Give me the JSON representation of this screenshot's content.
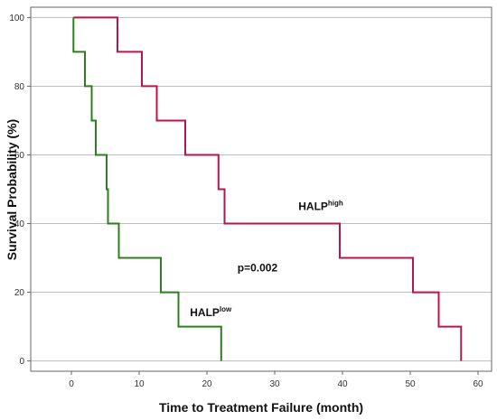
{
  "chart_data": {
    "type": "line",
    "step": true,
    "xlabel": "Time to Treatment Failure (month)",
    "ylabel": "Survival Probability (%)",
    "xlim": [
      -6,
      62
    ],
    "ylim": [
      -3,
      103
    ],
    "xticks": [
      0,
      10,
      20,
      30,
      40,
      50,
      60
    ],
    "yticks": [
      0,
      20,
      40,
      60,
      80,
      100
    ],
    "grid": "horizontal",
    "series": [
      {
        "color": "#b5174a",
        "points": [
          [
            0.3,
            100
          ],
          [
            6.8,
            100
          ],
          [
            6.8,
            90
          ],
          [
            10.4,
            90
          ],
          [
            10.4,
            80
          ],
          [
            12.6,
            80
          ],
          [
            12.6,
            70
          ],
          [
            16.8,
            70
          ],
          [
            16.8,
            60
          ],
          [
            21.7,
            60
          ],
          [
            21.7,
            50
          ],
          [
            22.6,
            50
          ],
          [
            22.6,
            40
          ],
          [
            39.6,
            40
          ],
          [
            39.6,
            30
          ],
          [
            50.4,
            30
          ],
          [
            50.4,
            20
          ],
          [
            54.2,
            20
          ],
          [
            54.2,
            10
          ],
          [
            57.5,
            10
          ],
          [
            57.5,
            0
          ]
        ]
      },
      {
        "color": "#2e7d1e",
        "points": [
          [
            0.3,
            100
          ],
          [
            0.3,
            90
          ],
          [
            2.0,
            90
          ],
          [
            2.0,
            80
          ],
          [
            3.0,
            80
          ],
          [
            3.0,
            70
          ],
          [
            3.6,
            70
          ],
          [
            3.6,
            60
          ],
          [
            5.2,
            60
          ],
          [
            5.2,
            50
          ],
          [
            5.4,
            50
          ],
          [
            5.4,
            40
          ],
          [
            7.0,
            40
          ],
          [
            7.0,
            30
          ],
          [
            13.2,
            30
          ],
          [
            13.2,
            20
          ],
          [
            15.8,
            20
          ],
          [
            15.8,
            10
          ],
          [
            22.1,
            10
          ],
          [
            22.1,
            0
          ]
        ]
      }
    ],
    "annotations": [
      {
        "base": "HALP",
        "sup": "high",
        "x": 33.5,
        "y": 44
      },
      {
        "base": "HALP",
        "sup": "low",
        "x": 17.5,
        "y": 13
      },
      {
        "text": "p=0.002",
        "x": 24.5,
        "y": 26
      }
    ]
  }
}
